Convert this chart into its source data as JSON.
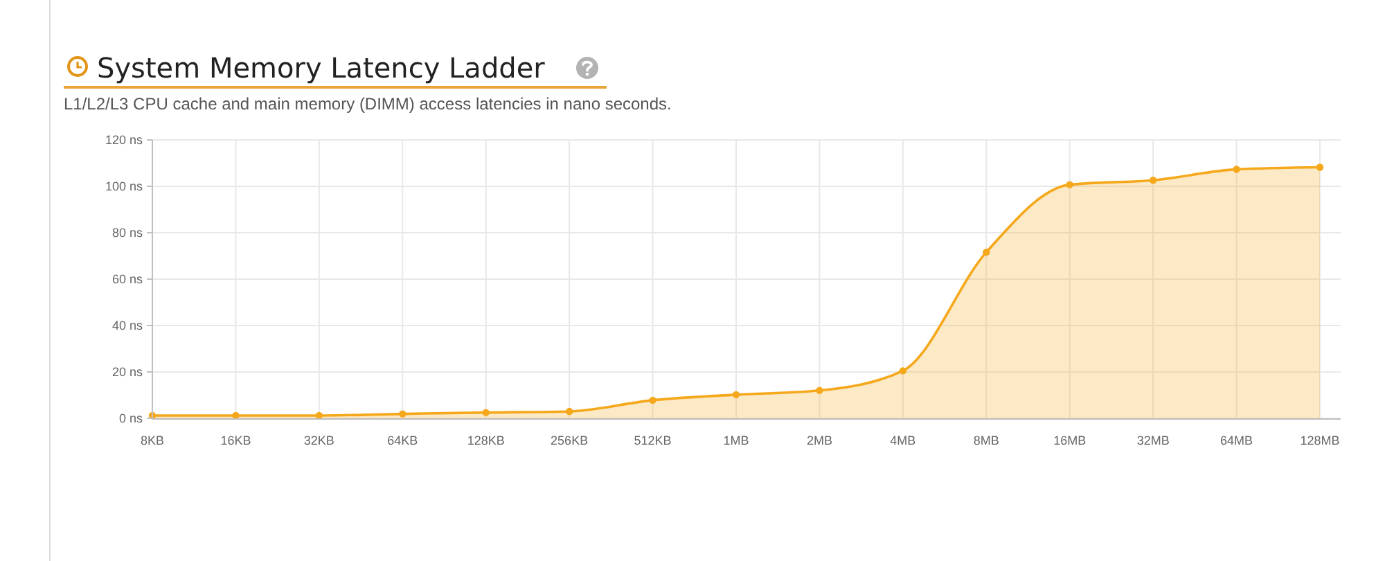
{
  "chart_data": {
    "type": "area",
    "title": "System Memory Latency Ladder",
    "subtitle": "L1/L2/L3 CPU cache and main memory (DIMM) access latencies in nano seconds.",
    "categories": [
      "8KB",
      "16KB",
      "32KB",
      "64KB",
      "128KB",
      "256KB",
      "512KB",
      "1MB",
      "2MB",
      "4MB",
      "8MB",
      "16MB",
      "32MB",
      "64MB",
      "128MB"
    ],
    "series": [
      {
        "color": "#f5a81c",
        "values": [
          1.2,
          1.2,
          1.2,
          1.9,
          2.5,
          3,
          7.8,
          10.2,
          12,
          20.5,
          71.6,
          100.7,
          102.6,
          107.3,
          108.2
        ]
      }
    ],
    "ylim": [
      0,
      120
    ],
    "yticks": [
      {
        "value": 0,
        "label": "0 ns"
      },
      {
        "value": 20,
        "label": "20 ns"
      },
      {
        "value": 40,
        "label": "40 ns"
      },
      {
        "value": 60,
        "label": "60 ns"
      },
      {
        "value": 80,
        "label": "80 ns"
      },
      {
        "value": 100,
        "label": "100 ns"
      },
      {
        "value": 120,
        "label": "120 ns"
      }
    ],
    "grid": true,
    "marker": "circle"
  }
}
